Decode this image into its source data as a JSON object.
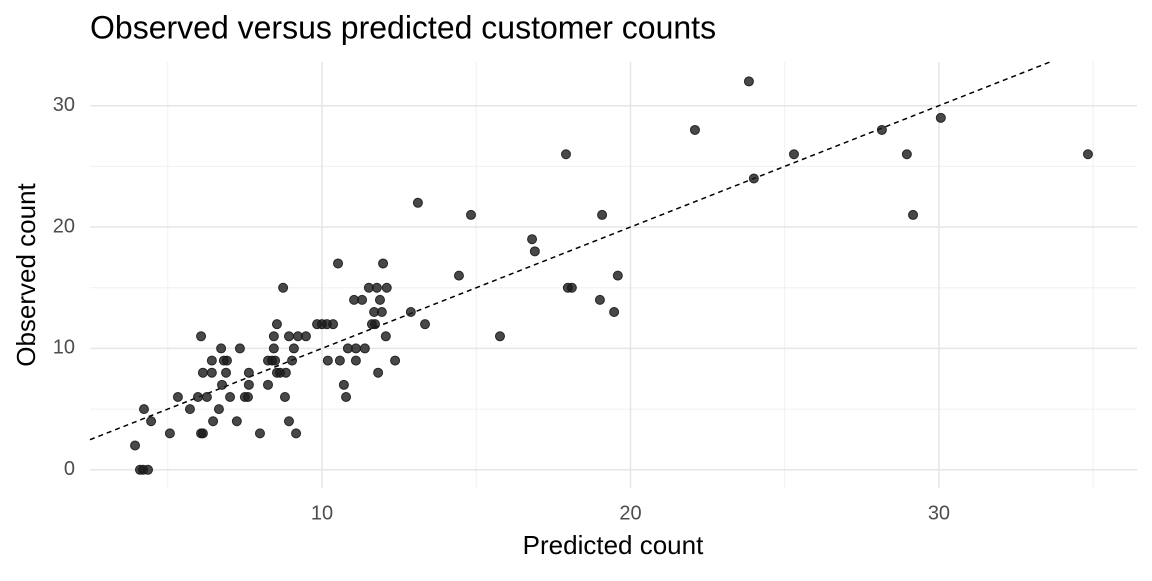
{
  "chart_data": {
    "type": "scatter",
    "title": "Observed versus predicted customer counts",
    "x_label": "Predicted count",
    "y_label": "Observed count",
    "x": [
      3.94,
      4.1,
      4.2,
      4.36,
      4.23,
      4.46,
      5.07,
      5.33,
      5.72,
      5.98,
      6.08,
      6.14,
      6.08,
      6.14,
      6.27,
      6.43,
      6.43,
      6.47,
      6.66,
      6.73,
      6.76,
      6.82,
      6.89,
      6.92,
      7.02,
      7.24,
      7.34,
      7.5,
      7.6,
      7.63,
      7.63,
      7.99,
      8.25,
      8.25,
      8.38,
      8.44,
      8.44,
      8.48,
      8.54,
      8.54,
      8.64,
      8.74,
      8.8,
      8.83,
      8.93,
      9.03,
      8.93,
      9.09,
      9.16,
      9.22,
      9.48,
      9.84,
      10,
      10.16,
      10.19,
      10.36,
      10.52,
      10.58,
      10.71,
      10.78,
      10.84,
      11.04,
      11.1,
      11.1,
      11.3,
      11.39,
      11.52,
      11.62,
      11.69,
      11.72,
      11.78,
      11.82,
      11.88,
      11.94,
      11.98,
      12.07,
      12.1,
      12.37,
      12.88,
      13.11,
      13.34,
      14.44,
      14.83,
      15.77,
      16.81,
      16.9,
      17.91,
      17.97,
      18.1,
      19.01,
      19.08,
      19.47,
      19.59,
      22.09,
      23.84,
      24,
      25.3,
      28.15,
      28.96,
      29.16,
      30.06,
      34.83
    ],
    "values": [
      2,
      0,
      0,
      0,
      5,
      4,
      3,
      6,
      5,
      6,
      11,
      8,
      3,
      3,
      6,
      8,
      9,
      4,
      5,
      10,
      7,
      9,
      8,
      9,
      6,
      4,
      10,
      6,
      6,
      7,
      8,
      3,
      7,
      9,
      9,
      11,
      10,
      9,
      12,
      8,
      8,
      15,
      6,
      8,
      4,
      9,
      11,
      10,
      3,
      11,
      11,
      12,
      12,
      12,
      9,
      12,
      17,
      9,
      7,
      6,
      10,
      14,
      9,
      10,
      14,
      10,
      15,
      12,
      13,
      12,
      15,
      8,
      14,
      13,
      17,
      11,
      15,
      9,
      13,
      22,
      12,
      16,
      21,
      11,
      19,
      18,
      26,
      15,
      15,
      14,
      21,
      13,
      16,
      28,
      32,
      24,
      26,
      28,
      26,
      21,
      29,
      26
    ],
    "color": "#1a1a1a",
    "xlim": [
      2.48,
      36.42
    ],
    "ylim": [
      -1.5,
      33.6
    ],
    "xticks": [
      10,
      20,
      30
    ],
    "yticks": [
      0,
      10,
      20,
      30
    ],
    "minor_xticks": [
      5,
      15,
      25,
      35
    ],
    "minor_yticks": [
      5,
      15,
      25
    ],
    "grid": true,
    "identity_line": true
  }
}
